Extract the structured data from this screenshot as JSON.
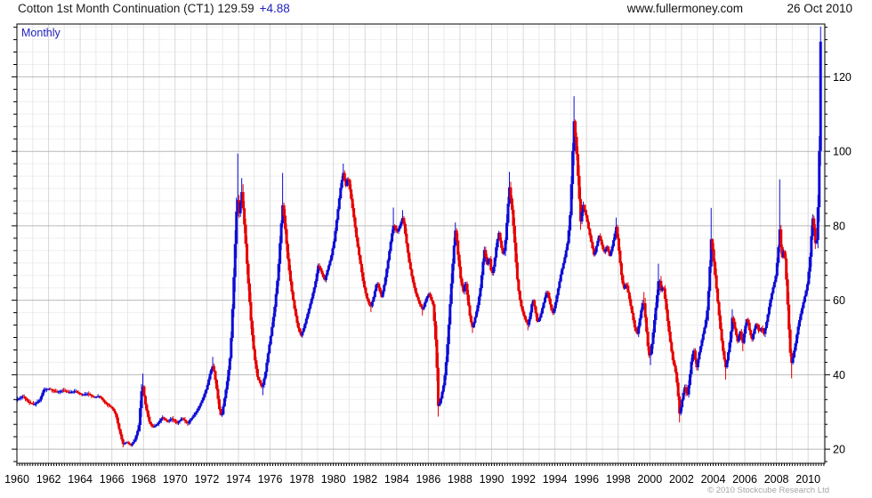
{
  "header": {
    "title": "Cotton 1st Month Continuation (CT1) 129.59",
    "change": "+4.88",
    "site": "www.fullermoney.com",
    "date": "26 Oct 2010"
  },
  "chart": {
    "timeframe_label": "Monthly",
    "copyright": "© 2010 Stockcube Research Ltd"
  },
  "colors": {
    "up": "#0d0dd6",
    "down": "#e60000",
    "grid_minor": "#efefef",
    "grid_major": "#b9b9b9",
    "grid_year_odd": "#e9e9e9",
    "grid_year_even": "#d8d8d8",
    "frame": "#000000",
    "accent_text": "#2121bd",
    "title_text": "#1c1c1c",
    "axis_text": "#000000",
    "copyright_text": "#a6a6a6"
  },
  "chart_data": {
    "type": "candlestick",
    "interval": "monthly",
    "instrument": "Cotton 1st Month Continuation (CT1)",
    "last_price": 129.59,
    "change": 4.88,
    "first_month": "1960-01",
    "last_month": "2010-10",
    "x_range": [
      1960,
      2011.06
    ],
    "y_range": [
      16.2,
      134.2
    ],
    "y_major_step": 20,
    "y_minor_step": 3.3333,
    "x_tick_labels": [
      "1960",
      "1962",
      "1964",
      "1966",
      "1968",
      "1970",
      "1972",
      "1974",
      "1976",
      "1978",
      "1980",
      "1982",
      "1984",
      "1986",
      "1988",
      "1990",
      "1992",
      "1994",
      "1996",
      "1998",
      "2000",
      "2002",
      "2004",
      "2006",
      "2008",
      "2010"
    ],
    "y_tick_labels": [
      "20",
      "40",
      "60",
      "80",
      "100",
      "120"
    ],
    "close_anchors": [
      [
        1960.04,
        33.4
      ],
      [
        1960.4,
        34.3
      ],
      [
        1960.75,
        32.5
      ],
      [
        1961.1,
        32.0
      ],
      [
        1961.45,
        33.2
      ],
      [
        1961.7,
        36.0
      ],
      [
        1962.1,
        36.2
      ],
      [
        1962.5,
        35.3
      ],
      [
        1962.9,
        35.8
      ],
      [
        1963.3,
        35.2
      ],
      [
        1963.7,
        35.6
      ],
      [
        1964.1,
        34.6
      ],
      [
        1964.5,
        34.9
      ],
      [
        1964.9,
        33.9
      ],
      [
        1965.2,
        34.3
      ],
      [
        1965.6,
        32.4
      ],
      [
        1966.0,
        31.2
      ],
      [
        1966.25,
        29.3
      ],
      [
        1966.45,
        25.5
      ],
      [
        1966.7,
        21.4
      ],
      [
        1966.95,
        21.9
      ],
      [
        1967.2,
        21.0
      ],
      [
        1967.45,
        22.4
      ],
      [
        1967.7,
        26.0
      ],
      [
        1967.92,
        38.0
      ],
      [
        1968.1,
        32.5
      ],
      [
        1968.35,
        27.5
      ],
      [
        1968.6,
        25.8
      ],
      [
        1968.9,
        26.8
      ],
      [
        1969.2,
        28.6
      ],
      [
        1969.5,
        27.4
      ],
      [
        1969.8,
        28.2
      ],
      [
        1970.1,
        27.0
      ],
      [
        1970.45,
        28.3
      ],
      [
        1970.8,
        26.9
      ],
      [
        1971.1,
        28.6
      ],
      [
        1971.45,
        30.8
      ],
      [
        1971.75,
        33.5
      ],
      [
        1972.0,
        36.5
      ],
      [
        1972.25,
        41.0
      ],
      [
        1972.4,
        42.6
      ],
      [
        1972.6,
        37.0
      ],
      [
        1972.8,
        30.5
      ],
      [
        1972.92,
        28.4
      ],
      [
        1973.1,
        33.0
      ],
      [
        1973.3,
        38.5
      ],
      [
        1973.5,
        46.0
      ],
      [
        1973.65,
        60.0
      ],
      [
        1973.8,
        76.0
      ],
      [
        1973.92,
        88.5
      ],
      [
        1974.05,
        83.0
      ],
      [
        1974.2,
        89.5
      ],
      [
        1974.4,
        79.0
      ],
      [
        1974.6,
        66.0
      ],
      [
        1974.8,
        54.0
      ],
      [
        1975.0,
        45.0
      ],
      [
        1975.2,
        39.5
      ],
      [
        1975.5,
        36.4
      ],
      [
        1975.7,
        40.5
      ],
      [
        1975.9,
        46.5
      ],
      [
        1976.1,
        52.0
      ],
      [
        1976.3,
        58.5
      ],
      [
        1976.5,
        67.0
      ],
      [
        1976.68,
        79.0
      ],
      [
        1976.8,
        86.0
      ],
      [
        1976.95,
        79.5
      ],
      [
        1977.15,
        70.0
      ],
      [
        1977.35,
        63.0
      ],
      [
        1977.55,
        57.5
      ],
      [
        1977.75,
        53.0
      ],
      [
        1977.95,
        50.4
      ],
      [
        1978.15,
        52.8
      ],
      [
        1978.35,
        56.0
      ],
      [
        1978.6,
        60.0
      ],
      [
        1978.85,
        64.5
      ],
      [
        1979.05,
        69.5
      ],
      [
        1979.25,
        67.5
      ],
      [
        1979.45,
        65.3
      ],
      [
        1979.65,
        68.5
      ],
      [
        1979.85,
        71.5
      ],
      [
        1980.05,
        76.0
      ],
      [
        1980.25,
        83.0
      ],
      [
        1980.45,
        90.0
      ],
      [
        1980.62,
        94.3
      ],
      [
        1980.78,
        90.5
      ],
      [
        1980.92,
        93.5
      ],
      [
        1981.1,
        88.0
      ],
      [
        1981.3,
        82.0
      ],
      [
        1981.5,
        75.5
      ],
      [
        1981.7,
        70.0
      ],
      [
        1981.9,
        64.5
      ],
      [
        1982.1,
        60.8
      ],
      [
        1982.35,
        58.0
      ],
      [
        1982.55,
        61.0
      ],
      [
        1982.75,
        65.0
      ],
      [
        1982.9,
        63.0
      ],
      [
        1983.05,
        60.8
      ],
      [
        1983.25,
        65.0
      ],
      [
        1983.45,
        70.5
      ],
      [
        1983.65,
        76.5
      ],
      [
        1983.82,
        80.8
      ],
      [
        1984.0,
        78.0
      ],
      [
        1984.2,
        80.0
      ],
      [
        1984.4,
        82.4
      ],
      [
        1984.6,
        76.0
      ],
      [
        1984.8,
        70.0
      ],
      [
        1985.0,
        65.5
      ],
      [
        1985.2,
        62.0
      ],
      [
        1985.45,
        59.0
      ],
      [
        1985.65,
        57.4
      ],
      [
        1985.85,
        60.3
      ],
      [
        1986.05,
        61.8
      ],
      [
        1986.3,
        58.8
      ],
      [
        1986.5,
        47.0
      ],
      [
        1986.63,
        31.0
      ],
      [
        1986.8,
        33.8
      ],
      [
        1987.0,
        38.0
      ],
      [
        1987.15,
        44.5
      ],
      [
        1987.3,
        54.0
      ],
      [
        1987.45,
        64.0
      ],
      [
        1987.6,
        73.5
      ],
      [
        1987.72,
        79.3
      ],
      [
        1987.88,
        72.0
      ],
      [
        1988.05,
        65.5
      ],
      [
        1988.2,
        62.2
      ],
      [
        1988.35,
        65.3
      ],
      [
        1988.5,
        60.0
      ],
      [
        1988.65,
        55.0
      ],
      [
        1988.8,
        52.6
      ],
      [
        1988.95,
        55.3
      ],
      [
        1989.1,
        58.0
      ],
      [
        1989.3,
        63.5
      ],
      [
        1989.45,
        70.0
      ],
      [
        1989.55,
        73.8
      ],
      [
        1989.7,
        69.5
      ],
      [
        1989.85,
        72.0
      ],
      [
        1990.0,
        66.5
      ],
      [
        1990.15,
        69.5
      ],
      [
        1990.3,
        74.5
      ],
      [
        1990.45,
        78.3
      ],
      [
        1990.6,
        74.5
      ],
      [
        1990.75,
        71.8
      ],
      [
        1990.9,
        77.0
      ],
      [
        1991.0,
        83.5
      ],
      [
        1991.12,
        90.5
      ],
      [
        1991.3,
        84.0
      ],
      [
        1991.45,
        76.0
      ],
      [
        1991.6,
        66.5
      ],
      [
        1991.75,
        61.0
      ],
      [
        1991.9,
        57.8
      ],
      [
        1992.1,
        55.0
      ],
      [
        1992.3,
        53.3
      ],
      [
        1992.45,
        56.5
      ],
      [
        1992.6,
        60.5
      ],
      [
        1992.75,
        57.5
      ],
      [
        1992.9,
        53.8
      ],
      [
        1993.1,
        56.0
      ],
      [
        1993.3,
        59.5
      ],
      [
        1993.5,
        62.8
      ],
      [
        1993.7,
        59.0
      ],
      [
        1993.85,
        56.2
      ],
      [
        1994.0,
        58.5
      ],
      [
        1994.2,
        63.0
      ],
      [
        1994.4,
        67.5
      ],
      [
        1994.6,
        71.0
      ],
      [
        1994.8,
        75.5
      ],
      [
        1994.95,
        82.0
      ],
      [
        1995.08,
        95.0
      ],
      [
        1995.2,
        108.5
      ],
      [
        1995.35,
        101.0
      ],
      [
        1995.5,
        90.5
      ],
      [
        1995.62,
        81.0
      ],
      [
        1995.78,
        85.8
      ],
      [
        1995.95,
        83.0
      ],
      [
        1996.1,
        79.8
      ],
      [
        1996.3,
        75.5
      ],
      [
        1996.48,
        71.8
      ],
      [
        1996.65,
        75.0
      ],
      [
        1996.8,
        77.5
      ],
      [
        1996.95,
        75.0
      ],
      [
        1997.1,
        72.8
      ],
      [
        1997.3,
        74.5
      ],
      [
        1997.45,
        71.8
      ],
      [
        1997.6,
        74.0
      ],
      [
        1997.75,
        77.0
      ],
      [
        1997.88,
        79.8
      ],
      [
        1998.05,
        73.0
      ],
      [
        1998.2,
        67.0
      ],
      [
        1998.35,
        62.8
      ],
      [
        1998.5,
        64.8
      ],
      [
        1998.7,
        60.5
      ],
      [
        1998.9,
        56.0
      ],
      [
        1999.05,
        52.5
      ],
      [
        1999.2,
        50.8
      ],
      [
        1999.35,
        54.5
      ],
      [
        1999.5,
        58.5
      ],
      [
        1999.6,
        60.3
      ],
      [
        1999.75,
        53.5
      ],
      [
        1999.9,
        46.5
      ],
      [
        2000.0,
        44.3
      ],
      [
        2000.15,
        49.0
      ],
      [
        2000.3,
        55.0
      ],
      [
        2000.45,
        61.0
      ],
      [
        2000.58,
        66.8
      ],
      [
        2000.7,
        62.5
      ],
      [
        2000.85,
        64.0
      ],
      [
        2001.0,
        59.0
      ],
      [
        2001.15,
        53.5
      ],
      [
        2001.3,
        48.5
      ],
      [
        2001.45,
        44.0
      ],
      [
        2001.6,
        41.5
      ],
      [
        2001.75,
        36.5
      ],
      [
        2001.88,
        29.3
      ],
      [
        2002.05,
        33.5
      ],
      [
        2002.2,
        36.8
      ],
      [
        2002.35,
        33.9
      ],
      [
        2002.5,
        38.5
      ],
      [
        2002.65,
        44.5
      ],
      [
        2002.78,
        46.8
      ],
      [
        2002.95,
        41.8
      ],
      [
        2003.1,
        45.5
      ],
      [
        2003.3,
        49.5
      ],
      [
        2003.5,
        53.5
      ],
      [
        2003.65,
        58.0
      ],
      [
        2003.78,
        68.0
      ],
      [
        2003.88,
        76.8
      ],
      [
        2004.05,
        70.0
      ],
      [
        2004.2,
        63.5
      ],
      [
        2004.35,
        57.0
      ],
      [
        2004.5,
        50.5
      ],
      [
        2004.65,
        45.5
      ],
      [
        2004.8,
        41.8
      ],
      [
        2004.95,
        45.8
      ],
      [
        2005.1,
        50.5
      ],
      [
        2005.22,
        55.8
      ],
      [
        2005.4,
        51.8
      ],
      [
        2005.55,
        48.8
      ],
      [
        2005.7,
        51.8
      ],
      [
        2005.85,
        47.8
      ],
      [
        2006.0,
        52.3
      ],
      [
        2006.15,
        55.4
      ],
      [
        2006.3,
        51.8
      ],
      [
        2006.45,
        49.4
      ],
      [
        2006.6,
        52.0
      ],
      [
        2006.75,
        54.2
      ],
      [
        2006.9,
        51.4
      ],
      [
        2007.05,
        52.6
      ],
      [
        2007.2,
        50.8
      ],
      [
        2007.35,
        53.6
      ],
      [
        2007.5,
        57.2
      ],
      [
        2007.65,
        60.8
      ],
      [
        2007.8,
        63.6
      ],
      [
        2007.95,
        66.2
      ],
      [
        2008.1,
        72.5
      ],
      [
        2008.2,
        79.5
      ],
      [
        2008.35,
        71.0
      ],
      [
        2008.5,
        74.0
      ],
      [
        2008.62,
        66.0
      ],
      [
        2008.78,
        53.0
      ],
      [
        2008.92,
        42.5
      ],
      [
        2009.05,
        44.8
      ],
      [
        2009.2,
        48.2
      ],
      [
        2009.35,
        52.4
      ],
      [
        2009.5,
        55.6
      ],
      [
        2009.65,
        58.4
      ],
      [
        2009.8,
        61.2
      ],
      [
        2009.95,
        64.0
      ],
      [
        2010.1,
        70.0
      ],
      [
        2010.25,
        80.0
      ],
      [
        2010.33,
        83.8
      ],
      [
        2010.42,
        75.0
      ],
      [
        2010.54,
        76.0
      ],
      [
        2010.625,
        85.0
      ],
      [
        2010.708,
        100.0
      ],
      [
        2010.792,
        129.59
      ]
    ],
    "wick_highs": [
      [
        1967.92,
        40.3
      ],
      [
        1972.4,
        44.8
      ],
      [
        1973.92,
        99.4
      ],
      [
        1974.2,
        92.8
      ],
      [
        1976.8,
        94.2
      ],
      [
        1980.62,
        96.7
      ],
      [
        1983.82,
        84.9
      ],
      [
        1984.4,
        84.2
      ],
      [
        1987.72,
        80.9
      ],
      [
        1991.12,
        94.5
      ],
      [
        1995.2,
        114.8
      ],
      [
        1997.88,
        82.2
      ],
      [
        1999.6,
        62.2
      ],
      [
        2000.58,
        69.8
      ],
      [
        2003.88,
        84.8
      ],
      [
        2005.22,
        57.6
      ],
      [
        2008.2,
        92.5
      ],
      [
        2010.792,
        130.6
      ]
    ],
    "wick_lows": [
      [
        1966.7,
        20.5
      ],
      [
        1975.5,
        34.5
      ],
      [
        1982.35,
        56.8
      ],
      [
        1985.65,
        55.9
      ],
      [
        1986.63,
        29.3
      ],
      [
        1988.8,
        51.2
      ],
      [
        1992.3,
        51.9
      ],
      [
        2000.0,
        42.6
      ],
      [
        2001.88,
        27.2
      ],
      [
        2004.8,
        38.7
      ],
      [
        2005.85,
        46.3
      ],
      [
        2008.92,
        39.0
      ]
    ]
  }
}
